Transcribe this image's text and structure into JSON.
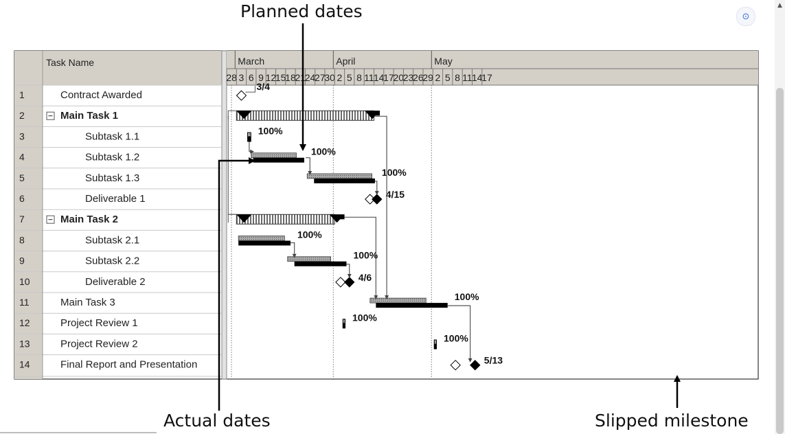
{
  "callouts": {
    "planned": "Planned dates",
    "actual": "Actual dates",
    "slipped": "Slipped milestone"
  },
  "table": {
    "header": "Task Name",
    "rows": [
      {
        "id": "1",
        "name": "Contract Awarded",
        "indent": 1,
        "bold": false,
        "summary": false
      },
      {
        "id": "2",
        "name": "Main Task 1",
        "indent": 1,
        "bold": true,
        "summary": true
      },
      {
        "id": "3",
        "name": "Subtask 1.1",
        "indent": 2,
        "bold": false,
        "summary": false
      },
      {
        "id": "4",
        "name": "Subtask 1.2",
        "indent": 2,
        "bold": false,
        "summary": false
      },
      {
        "id": "5",
        "name": "Subtask 1.3",
        "indent": 2,
        "bold": false,
        "summary": false
      },
      {
        "id": "6",
        "name": "Deliverable 1",
        "indent": 2,
        "bold": false,
        "summary": false
      },
      {
        "id": "7",
        "name": "Main Task 2",
        "indent": 1,
        "bold": true,
        "summary": true
      },
      {
        "id": "8",
        "name": "Subtask 2.1",
        "indent": 2,
        "bold": false,
        "summary": false
      },
      {
        "id": "9",
        "name": "Subtask 2.2",
        "indent": 2,
        "bold": false,
        "summary": false
      },
      {
        "id": "10",
        "name": "Deliverable 2",
        "indent": 2,
        "bold": false,
        "summary": false
      },
      {
        "id": "11",
        "name": "Main Task 3",
        "indent": 1,
        "bold": false,
        "summary": false
      },
      {
        "id": "12",
        "name": "Project Review 1",
        "indent": 1,
        "bold": false,
        "summary": false
      },
      {
        "id": "13",
        "name": "Project Review 2",
        "indent": 1,
        "bold": false,
        "summary": false
      },
      {
        "id": "14",
        "name": "Final Report and Presentation",
        "indent": 1,
        "bold": false,
        "summary": false
      }
    ]
  },
  "timescale": {
    "months": [
      {
        "label": "March",
        "start_tick": 1
      },
      {
        "label": "April",
        "start_tick": 11
      },
      {
        "label": "May",
        "start_tick": 21
      }
    ],
    "ticks": [
      "28",
      "3",
      "6",
      "9",
      "12",
      "15",
      "18",
      "21",
      "24",
      "27",
      "30",
      "2",
      "5",
      "8",
      "11",
      "14",
      "17",
      "20",
      "23",
      "26",
      "29",
      "2",
      "5",
      "8",
      "11",
      "14",
      "17"
    ]
  },
  "tasks": [
    {
      "row": 1,
      "type": "milestone",
      "planned": 1.5,
      "label": "3/4"
    },
    {
      "row": 2,
      "type": "summary",
      "actual": [
        1,
        15.6
      ],
      "planned_end": 15.0
    },
    {
      "row": 3,
      "type": "bar",
      "actual": [
        2.1,
        2.5
      ],
      "label": "100%"
    },
    {
      "row": 4,
      "type": "bar",
      "planned": [
        2.5,
        7.1
      ],
      "actual": [
        2.7,
        7.9
      ],
      "label": "100%"
    },
    {
      "row": 5,
      "type": "bar",
      "planned": [
        8.2,
        14.8
      ],
      "actual": [
        8.9,
        15.1
      ],
      "label": "100%"
    },
    {
      "row": 6,
      "type": "milestone",
      "planned": 14.6,
      "actual": 15.3,
      "label": "4/15"
    },
    {
      "row": 7,
      "type": "summary",
      "actual": [
        1,
        12.0
      ],
      "planned_end": 11.0
    },
    {
      "row": 8,
      "type": "bar",
      "planned": [
        1.2,
        5.9
      ],
      "actual": [
        1.2,
        6.5
      ],
      "label": "100%"
    },
    {
      "row": 9,
      "type": "bar",
      "planned": [
        6.2,
        10.6
      ],
      "actual": [
        6.9,
        12.2
      ],
      "label": "100%"
    },
    {
      "row": 10,
      "type": "milestone",
      "planned": 11.6,
      "actual": 12.5,
      "label": "4/6"
    },
    {
      "row": 11,
      "type": "bar",
      "planned": [
        14.6,
        20.3
      ],
      "actual": [
        15.2,
        22.5
      ],
      "label": "100%"
    },
    {
      "row": 12,
      "type": "bar",
      "actual": [
        11.8,
        12.1
      ],
      "label": "100%"
    },
    {
      "row": 13,
      "type": "bar",
      "actual": [
        21.1,
        21.4
      ],
      "label": "100%"
    },
    {
      "row": 14,
      "type": "milestone",
      "planned": 23.3,
      "actual": 25.3,
      "label": "5/13"
    }
  ],
  "colors": {
    "grid": "#c8c8c8",
    "header_bg": "#d4d0c8",
    "planned": "#9a9a9a",
    "actual": "#000000",
    "link": "#555555"
  },
  "icons": [
    "collapse-minus-icon",
    "screen-capture-icon",
    "scroll-up-arrow-icon"
  ]
}
